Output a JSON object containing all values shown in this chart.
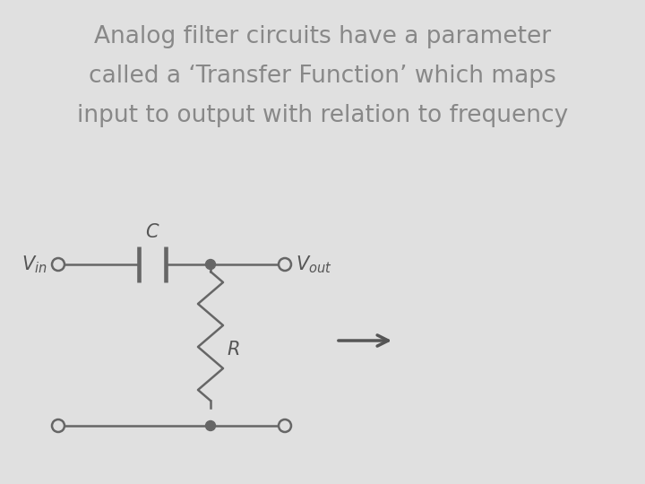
{
  "background_color": "#e0e0e0",
  "title_line1": "Analog filter circuits have a parameter",
  "title_line2": "called a ‘Transfer Function’ which maps",
  "title_line3": "input to output with relation to frequency",
  "title_fontsize": 19,
  "title_color": "#888888",
  "circuit_color": "#666666",
  "circuit_linewidth": 1.8,
  "label_color": "#555555",
  "arrow_color": "#555555",
  "fig_width": 7.2,
  "fig_height": 5.4,
  "dpi": 100
}
